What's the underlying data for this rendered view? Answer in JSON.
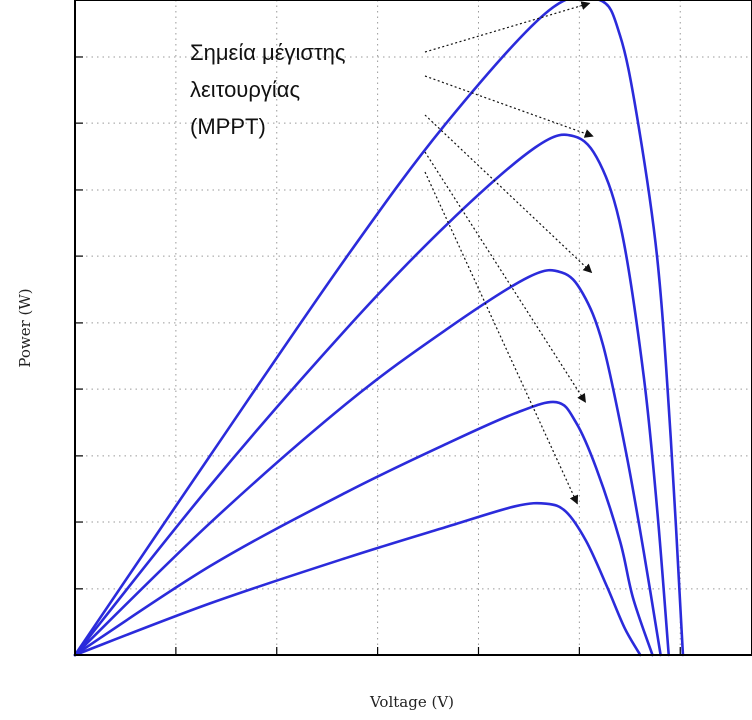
{
  "chart_data": {
    "type": "line",
    "title": "",
    "xlabel": "Voltage (V)",
    "ylabel": "Power (W)",
    "xlim": [
      0,
      100
    ],
    "ylim": [
      0,
      100
    ],
    "x_ticks": [
      0,
      14.9,
      29.8,
      44.7,
      59.6,
      74.5,
      89.4
    ],
    "y_ticks": [
      0,
      10.1,
      20.3,
      30.4,
      40.6,
      50.7,
      60.9,
      71.0,
      81.2,
      91.3
    ],
    "grid": true,
    "tick_labels": false,
    "series": [
      {
        "points": [
          [
            0,
            0
          ],
          [
            20,
            30.5
          ],
          [
            40,
            60.6
          ],
          [
            55,
            81.4
          ],
          [
            70,
            98.4
          ],
          [
            77.5,
            100
          ],
          [
            80.5,
            94.6
          ],
          [
            83,
            82.3
          ],
          [
            86,
            60.6
          ],
          [
            88,
            33.1
          ],
          [
            89.8,
            0
          ]
        ]
      },
      {
        "points": [
          [
            0,
            0
          ],
          [
            20,
            25.9
          ],
          [
            40,
            49.7
          ],
          [
            55,
            65.8
          ],
          [
            68,
            77.5
          ],
          [
            73.7,
            79.2
          ],
          [
            77.5,
            75.1
          ],
          [
            80.8,
            64.4
          ],
          [
            84,
            42.6
          ],
          [
            86,
            22.1
          ],
          [
            87.7,
            0
          ]
        ]
      },
      {
        "points": [
          [
            0,
            0
          ],
          [
            20,
            20.2
          ],
          [
            40,
            38.3
          ],
          [
            55,
            49.8
          ],
          [
            67,
            57.7
          ],
          [
            71.9,
            58.4
          ],
          [
            75,
            55.2
          ],
          [
            78,
            47.3
          ],
          [
            81.4,
            30.9
          ],
          [
            84,
            15.8
          ],
          [
            86.5,
            0
          ]
        ]
      },
      {
        "points": [
          [
            0,
            0
          ],
          [
            20,
            13.6
          ],
          [
            40,
            24.8
          ],
          [
            55,
            32.3
          ],
          [
            65,
            36.9
          ],
          [
            71.1,
            38.6
          ],
          [
            74,
            35.5
          ],
          [
            77,
            28.5
          ],
          [
            80.5,
            17.4
          ],
          [
            82.4,
            8.8
          ],
          [
            85.3,
            0
          ]
        ]
      },
      {
        "points": [
          [
            0,
            0
          ],
          [
            20,
            7.9
          ],
          [
            40,
            14.8
          ],
          [
            55,
            19.6
          ],
          [
            65,
            22.7
          ],
          [
            69.6,
            23.1
          ],
          [
            72.5,
            21.9
          ],
          [
            75.5,
            17.4
          ],
          [
            78.6,
            10.4
          ],
          [
            81.2,
            4.1
          ],
          [
            83.5,
            0
          ]
        ]
      }
    ],
    "annotation": {
      "text_lines": [
        "Σημεία μέγιστης",
        "λειτουργίας",
        "(MPPT)"
      ],
      "targets": [
        [
          76,
          99.5
        ],
        [
          76.5,
          79.2
        ],
        [
          76.3,
          58.4
        ],
        [
          75.4,
          38.6
        ],
        [
          74.2,
          23.1
        ]
      ]
    }
  },
  "colors": {
    "curve": "#2b2bdb",
    "frame": "#000000",
    "grid": "#9a9a9a",
    "arrow": "#111111"
  }
}
